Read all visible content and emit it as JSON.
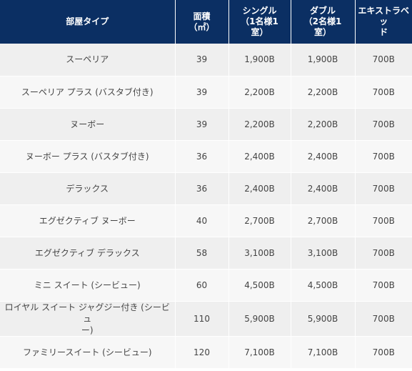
{
  "table": {
    "headers": {
      "room_type": "部屋タイプ",
      "area": "面積\n（㎡）",
      "single": "シングル\n（1名様1\n室）",
      "double": "ダブル\n（2名様1\n室）",
      "extra_bed": "エキストラベッ\nド"
    },
    "rows": [
      {
        "room": "スーペリア",
        "area": "39",
        "single": "1,900B",
        "double": "1,900B",
        "extra": "700B"
      },
      {
        "room": "スーペリア プラス (バスタブ付き)",
        "area": "39",
        "single": "2,200B",
        "double": "2,200B",
        "extra": "700B"
      },
      {
        "room": "ヌーボー",
        "area": "39",
        "single": "2,200B",
        "double": "2,200B",
        "extra": "700B"
      },
      {
        "room": "ヌーボー プラス (バスタブ付き)",
        "area": "36",
        "single": "2,400B",
        "double": "2,400B",
        "extra": "700B"
      },
      {
        "room": "デラックス",
        "area": "36",
        "single": "2,400B",
        "double": "2,400B",
        "extra": "700B"
      },
      {
        "room": "エグゼクティブ ヌーボー",
        "area": "40",
        "single": "2,700B",
        "double": "2,700B",
        "extra": "700B"
      },
      {
        "room": "エグゼクティブ デラックス",
        "area": "58",
        "single": "3,100B",
        "double": "3,100B",
        "extra": "700B"
      },
      {
        "room": "ミニ スイート (シービュー)",
        "area": "60",
        "single": "4,500B",
        "double": "4,500B",
        "extra": "700B"
      },
      {
        "room": "ロイヤル スイート ジャグジー付き (シービュ\nー)",
        "area": "110",
        "single": "5,900B",
        "double": "5,900B",
        "extra": "700B"
      },
      {
        "room": "ファミリースイート (シービュー)",
        "area": "120",
        "single": "7,100B",
        "double": "7,100B",
        "extra": "700B"
      }
    ]
  },
  "colors": {
    "header_bg": "#0b2f63",
    "header_text": "#ffffff",
    "row_bg_odd": "#efefef",
    "row_bg_even": "#f7f7f7",
    "cell_text": "#444444"
  }
}
